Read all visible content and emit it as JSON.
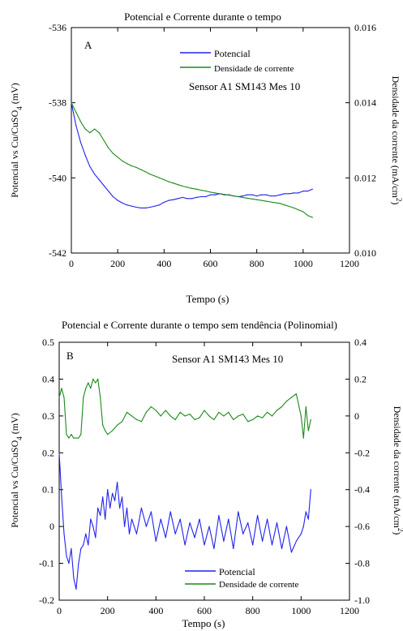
{
  "chart_data": [
    {
      "type": "line",
      "panel_label": "A",
      "title": "Potencial e Corrente durante o tempo",
      "xlabel": "Tempo (s)",
      "ylabel_left": "Potencial vs Cu/CuSO",
      "ylabel_left_sub": "4",
      "ylabel_left_tail": " (mV)",
      "ylabel_right": "Densidade da corrente (mA/cm",
      "ylabel_right_sup": "2",
      "ylabel_right_tail": ")",
      "annotation": "Sensor A1 SM143 Mes 10",
      "xlim": [
        0,
        1200
      ],
      "ylim_left": [
        -542,
        -536
      ],
      "ylim_right": [
        0.01,
        0.016
      ],
      "x_ticks": [
        "0",
        "200",
        "400",
        "600",
        "800",
        "1000",
        "1200"
      ],
      "y_ticks_left": [
        "-536",
        "-538",
        "-540",
        "-542"
      ],
      "y_ticks_right": [
        "0.016",
        "0.014",
        "0.012",
        "0.010"
      ],
      "grid": false,
      "legend_position": "top-right",
      "series": [
        {
          "name": "Potencial",
          "color": "#2222ee",
          "axis": "left",
          "x": [
            0,
            20,
            40,
            60,
            80,
            100,
            120,
            140,
            160,
            180,
            200,
            220,
            240,
            260,
            280,
            300,
            320,
            340,
            360,
            380,
            400,
            420,
            440,
            460,
            480,
            500,
            520,
            540,
            560,
            580,
            600,
            620,
            640,
            660,
            680,
            700,
            720,
            740,
            760,
            780,
            800,
            820,
            840,
            860,
            880,
            900,
            920,
            940,
            960,
            980,
            1000,
            1020,
            1040
          ],
          "y": [
            -538.0,
            -538.6,
            -539.05,
            -539.4,
            -539.7,
            -539.9,
            -540.05,
            -540.2,
            -540.35,
            -540.5,
            -540.6,
            -540.67,
            -540.72,
            -540.75,
            -540.78,
            -540.8,
            -540.8,
            -540.78,
            -540.75,
            -540.72,
            -540.65,
            -540.6,
            -540.58,
            -540.55,
            -540.52,
            -540.55,
            -540.55,
            -540.52,
            -540.5,
            -540.5,
            -540.45,
            -540.45,
            -540.42,
            -540.45,
            -540.45,
            -540.48,
            -540.5,
            -540.48,
            -540.45,
            -540.45,
            -540.48,
            -540.45,
            -540.45,
            -540.48,
            -540.48,
            -540.45,
            -540.42,
            -540.42,
            -540.4,
            -540.4,
            -540.35,
            -540.35,
            -540.3
          ]
        },
        {
          "name": "Densidade de corrente",
          "color": "#1a8a1a",
          "axis": "right",
          "x": [
            0,
            20,
            40,
            60,
            80,
            100,
            120,
            140,
            160,
            180,
            200,
            220,
            240,
            260,
            280,
            300,
            320,
            340,
            360,
            380,
            400,
            420,
            440,
            460,
            480,
            500,
            520,
            540,
            560,
            580,
            600,
            620,
            640,
            660,
            680,
            700,
            720,
            740,
            760,
            780,
            800,
            820,
            840,
            860,
            880,
            900,
            920,
            940,
            960,
            980,
            1000,
            1020,
            1040
          ],
          "y": [
            0.014,
            0.01375,
            0.0135,
            0.0133,
            0.0132,
            0.0133,
            0.0132,
            0.013,
            0.0128,
            0.01265,
            0.01255,
            0.01245,
            0.01238,
            0.01232,
            0.01228,
            0.01222,
            0.01216,
            0.0121,
            0.01205,
            0.012,
            0.01195,
            0.0119,
            0.01186,
            0.01182,
            0.01178,
            0.01175,
            0.01172,
            0.0117,
            0.01167,
            0.01165,
            0.01162,
            0.0116,
            0.01158,
            0.01156,
            0.01154,
            0.01152,
            0.0115,
            0.01148,
            0.01146,
            0.01144,
            0.01142,
            0.0114,
            0.01138,
            0.01136,
            0.01134,
            0.01132,
            0.01128,
            0.01124,
            0.0112,
            0.01115,
            0.0111,
            0.011,
            0.01095
          ]
        }
      ]
    },
    {
      "type": "line",
      "panel_label": "B",
      "title": "Potencial e Corrente durante o tempo sem tendência (Polinomial)",
      "xlabel": "Tempo (s)",
      "ylabel_left": "Potencial vs Cu/CuSO",
      "ylabel_left_sub": "4",
      "ylabel_left_tail": " (mV)",
      "ylabel_right": "Densidade da corrente (mA/cm",
      "ylabel_right_sup": "2",
      "ylabel_right_tail": ")",
      "annotation": "Sensor A1 SM143 Mes 10",
      "xlim": [
        0,
        1200
      ],
      "ylim_left": [
        -0.2,
        0.5
      ],
      "ylim_right": [
        -1.0,
        0.4
      ],
      "x_ticks": [
        "0",
        "200",
        "400",
        "600",
        "800",
        "1000",
        "1200"
      ],
      "y_ticks_left": [
        "0.5",
        "0.4",
        "0.3",
        "0.2",
        "0.1",
        "0",
        "-0.1",
        "-0.2"
      ],
      "y_ticks_right": [
        "0.4",
        "0.2",
        "0",
        "-0.2",
        "-0.4",
        "-0.6",
        "-0.8",
        "-1.0"
      ],
      "grid": false,
      "legend_position": "bottom-right",
      "series": [
        {
          "name": "Potencial",
          "color": "#2222ee",
          "axis": "left",
          "x": [
            0,
            10,
            20,
            30,
            40,
            50,
            60,
            70,
            80,
            90,
            100,
            110,
            120,
            130,
            140,
            150,
            160,
            170,
            180,
            190,
            200,
            210,
            220,
            230,
            240,
            250,
            260,
            270,
            280,
            290,
            300,
            320,
            340,
            360,
            380,
            400,
            420,
            440,
            460,
            480,
            500,
            520,
            540,
            560,
            580,
            600,
            620,
            640,
            660,
            680,
            700,
            720,
            740,
            760,
            780,
            800,
            820,
            840,
            860,
            880,
            900,
            920,
            940,
            960,
            980,
            1000,
            1010,
            1020,
            1030,
            1040
          ],
          "y": [
            0.2,
            0.08,
            -0.02,
            -0.08,
            -0.1,
            -0.06,
            -0.14,
            -0.17,
            -0.1,
            -0.06,
            -0.05,
            -0.02,
            -0.05,
            0.02,
            0.0,
            -0.03,
            0.05,
            0.03,
            0.08,
            0.02,
            0.1,
            0.05,
            0.09,
            0.07,
            0.12,
            0.05,
            0.08,
            0.0,
            0.05,
            -0.02,
            0.02,
            -0.02,
            0.05,
            0.0,
            0.04,
            -0.04,
            0.02,
            -0.03,
            0.04,
            -0.02,
            0.02,
            -0.05,
            0.01,
            -0.03,
            0.02,
            -0.05,
            0.0,
            -0.06,
            0.03,
            -0.04,
            0.02,
            -0.06,
            0.04,
            -0.02,
            0.01,
            -0.05,
            0.03,
            -0.04,
            0.02,
            -0.05,
            0.01,
            -0.06,
            0.0,
            -0.07,
            -0.04,
            -0.02,
            0.0,
            0.04,
            0.02,
            0.1
          ]
        },
        {
          "name": "Densidade de corrente",
          "color": "#1a8a1a",
          "axis": "right",
          "x": [
            0,
            10,
            20,
            30,
            40,
            50,
            60,
            70,
            80,
            90,
            100,
            110,
            120,
            130,
            140,
            150,
            160,
            170,
            180,
            190,
            200,
            220,
            240,
            260,
            280,
            300,
            320,
            340,
            360,
            380,
            400,
            420,
            440,
            460,
            480,
            500,
            520,
            540,
            560,
            580,
            600,
            620,
            640,
            660,
            680,
            700,
            720,
            740,
            760,
            780,
            800,
            820,
            840,
            860,
            880,
            900,
            920,
            940,
            960,
            980,
            1000,
            1010,
            1020,
            1030,
            1040
          ],
          "y": [
            0.1,
            0.15,
            0.1,
            -0.1,
            -0.12,
            -0.1,
            -0.12,
            -0.12,
            -0.12,
            -0.1,
            0.1,
            0.15,
            0.18,
            0.15,
            0.2,
            0.18,
            0.2,
            0.1,
            -0.05,
            -0.08,
            -0.1,
            -0.08,
            -0.05,
            -0.03,
            0.02,
            0.0,
            -0.02,
            -0.03,
            0.02,
            0.05,
            0.03,
            0.0,
            0.03,
            0.0,
            -0.02,
            0.02,
            0.0,
            0.01,
            -0.02,
            -0.01,
            0.03,
            0.0,
            -0.02,
            0.02,
            0.0,
            0.02,
            -0.02,
            0.0,
            0.01,
            -0.03,
            -0.02,
            0.0,
            -0.01,
            0.02,
            0.0,
            0.03,
            0.05,
            0.08,
            0.1,
            0.12,
            0.0,
            -0.12,
            0.05,
            -0.08,
            -0.02
          ]
        }
      ]
    }
  ]
}
